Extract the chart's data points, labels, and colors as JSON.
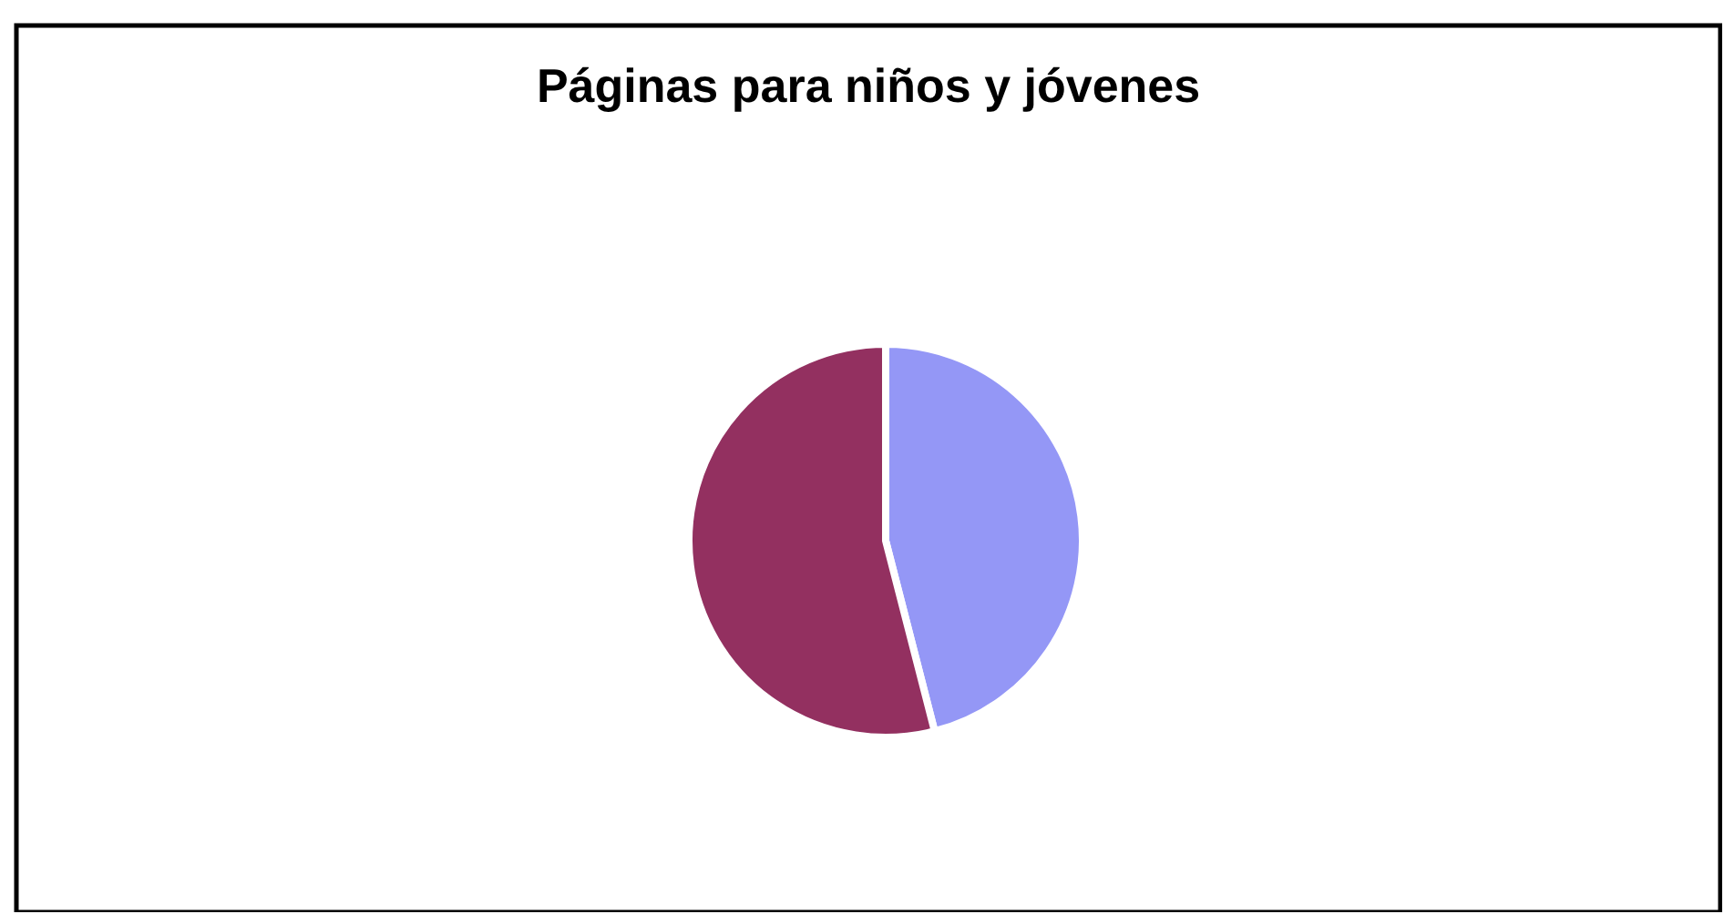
{
  "chart_data": {
    "type": "pie",
    "title": "Páginas para niños y jóvenes",
    "categories": [
      null,
      null
    ],
    "values": [
      46,
      54
    ],
    "colors": [
      "#9497f6",
      "#933060"
    ]
  }
}
